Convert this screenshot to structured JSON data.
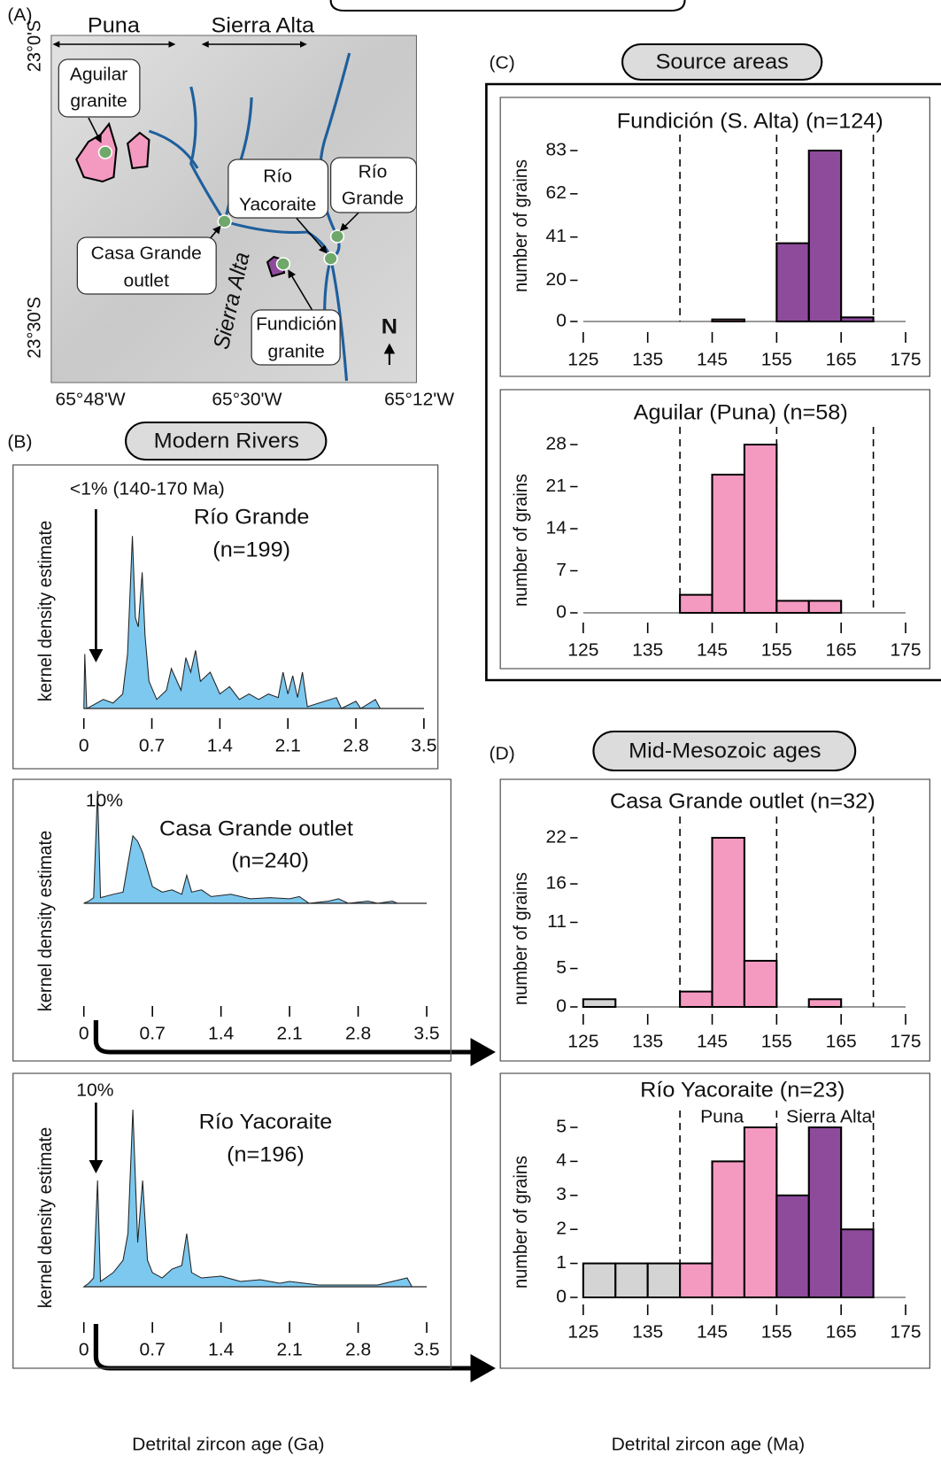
{
  "figure": {
    "panel_labels": [
      "(A)",
      "(B)",
      "(C)",
      "(D)"
    ],
    "section_titles": [
      "Source areas",
      "Modern Rivers",
      "Mid-Mesozoic ages"
    ]
  },
  "map": {
    "region_labels": [
      "Puna",
      "Sierra Alta"
    ],
    "latitudes": [
      "23°0'S",
      "23°30'S"
    ],
    "longitudes": [
      "65°48'W",
      "65°30'W",
      "65°12'W"
    ],
    "callouts": [
      {
        "lines": [
          "Aguilar",
          "granite"
        ]
      },
      {
        "lines": [
          "Río",
          "Yacoraite"
        ]
      },
      {
        "lines": [
          "Río",
          "Grande"
        ]
      },
      {
        "lines": [
          "Casa Grande",
          "outlet"
        ]
      },
      {
        "lines": [
          "Fundición",
          "granite"
        ]
      }
    ],
    "range_label": "Sierra Alta",
    "north": "N"
  },
  "chart_data": [
    {
      "type": "area",
      "title": "Río Grande",
      "subtitle": "(n=199)",
      "ylabel": "kernel density estimate",
      "annotation": "<1% (140-170 Ma)",
      "color": "#7cc8ef",
      "x": [
        0,
        0.01,
        0.03,
        0.1,
        0.2,
        0.3,
        0.4,
        0.45,
        0.5,
        0.53,
        0.56,
        0.6,
        0.63,
        0.67,
        0.75,
        0.85,
        0.9,
        1.0,
        1.05,
        1.1,
        1.15,
        1.2,
        1.3,
        1.4,
        1.5,
        1.6,
        1.7,
        1.8,
        1.9,
        2.0,
        2.05,
        2.1,
        2.15,
        2.2,
        2.25,
        2.3,
        2.6,
        2.65,
        2.8,
        2.85,
        3.0,
        3.05,
        3.5
      ],
      "values": [
        0,
        0.3,
        0,
        0.02,
        0.05,
        0.03,
        0.08,
        0.3,
        0.95,
        0.5,
        0.45,
        0.75,
        0.4,
        0.15,
        0.05,
        0.1,
        0.22,
        0.1,
        0.28,
        0.2,
        0.32,
        0.15,
        0.2,
        0.08,
        0.12,
        0.05,
        0.08,
        0.05,
        0.08,
        0.06,
        0.2,
        0.08,
        0.18,
        0.06,
        0.2,
        0.01,
        0.06,
        0,
        0.04,
        0,
        0.05,
        0,
        0
      ],
      "xlim": [
        0,
        3.5
      ],
      "ylim": [
        0,
        1
      ],
      "xticks": [
        0,
        0.7,
        1.4,
        2.1,
        2.8,
        3.5
      ]
    },
    {
      "type": "area",
      "title": "Casa Grande outlet",
      "subtitle": "(n=240)",
      "ylabel": "kernel density estimate",
      "annotation": "10%",
      "color": "#7cc8ef",
      "x": [
        0,
        0.05,
        0.1,
        0.14,
        0.17,
        0.3,
        0.4,
        0.45,
        0.5,
        0.55,
        0.6,
        0.65,
        0.7,
        0.8,
        0.9,
        1.0,
        1.05,
        1.1,
        1.2,
        1.3,
        1.5,
        1.7,
        1.9,
        2.1,
        2.2,
        2.3,
        2.5,
        2.6,
        2.7,
        2.9,
        3.0,
        3.15,
        3.2,
        3.5
      ],
      "values": [
        0,
        0.02,
        0.05,
        1.0,
        0.05,
        0.08,
        0.1,
        0.35,
        0.6,
        0.55,
        0.45,
        0.3,
        0.15,
        0.1,
        0.12,
        0.08,
        0.25,
        0.1,
        0.12,
        0.06,
        0.08,
        0.04,
        0.05,
        0.04,
        0.06,
        0,
        0.02,
        0.04,
        0,
        0.02,
        0,
        0.02,
        0,
        0
      ],
      "xlim": [
        0,
        3.5
      ],
      "ylim": [
        0,
        1
      ],
      "xticks": [
        0,
        0.7,
        1.4,
        2.1,
        2.8,
        3.5
      ]
    },
    {
      "type": "area",
      "title": "Río Yacoraite",
      "subtitle": "(n=196)",
      "ylabel": "kernel density estimate",
      "annotation": "10%",
      "color": "#7cc8ef",
      "xlabel": "Detrital zircon age (Ga)",
      "x": [
        0,
        0.05,
        0.1,
        0.14,
        0.17,
        0.3,
        0.4,
        0.45,
        0.5,
        0.55,
        0.6,
        0.65,
        0.7,
        0.8,
        0.9,
        1.0,
        1.05,
        1.1,
        1.2,
        1.4,
        1.6,
        1.8,
        2.0,
        2.1,
        2.4,
        2.7,
        3.0,
        3.3,
        3.35,
        3.5
      ],
      "values": [
        0,
        0.02,
        0.05,
        0.6,
        0.03,
        0.08,
        0.15,
        0.3,
        1.0,
        0.25,
        0.6,
        0.15,
        0.08,
        0.05,
        0.1,
        0.12,
        0.3,
        0.08,
        0.05,
        0.06,
        0.03,
        0.04,
        0.02,
        0.03,
        0.01,
        0.01,
        0.01,
        0.05,
        0,
        0
      ],
      "xlim": [
        0,
        3.5
      ],
      "ylim": [
        0,
        1
      ],
      "xticks": [
        0,
        0.7,
        1.4,
        2.1,
        2.8,
        3.5
      ]
    },
    {
      "type": "histogram",
      "title": "Fundición (S. Alta) (n=124)",
      "ylabel": "number of grains",
      "bins": [
        125,
        130,
        135,
        140,
        145,
        150,
        155,
        160,
        165,
        170,
        175
      ],
      "values": [
        0,
        0,
        0,
        0,
        1,
        0,
        38,
        83,
        2,
        0
      ],
      "colors": [
        "#d4d4d4",
        "#d4d4d4",
        "#d4d4d4",
        "#f49ac1",
        "#f49ac1",
        "#f49ac1",
        "#8e4b9c",
        "#8e4b9c",
        "#8e4b9c",
        "#d4d4d4"
      ],
      "xlim": [
        125,
        175
      ],
      "ylim": [
        0,
        83
      ],
      "xticks": [
        125,
        135,
        145,
        155,
        165,
        175
      ],
      "yticks": [
        0,
        20,
        41,
        62,
        83
      ],
      "reference_lines": [
        140,
        155,
        170
      ]
    },
    {
      "type": "histogram",
      "title": "Aguilar (Puna) (n=58)",
      "ylabel": "number of grains",
      "bins": [
        125,
        130,
        135,
        140,
        145,
        150,
        155,
        160,
        165,
        170,
        175
      ],
      "values": [
        0,
        0,
        0,
        3,
        23,
        28,
        2,
        2,
        0,
        0
      ],
      "colors": [
        "#d4d4d4",
        "#d4d4d4",
        "#d4d4d4",
        "#f49ac1",
        "#f49ac1",
        "#f49ac1",
        "#f49ac1",
        "#f49ac1",
        "#f49ac1",
        "#d4d4d4"
      ],
      "xlim": [
        125,
        175
      ],
      "ylim": [
        0,
        28
      ],
      "xticks": [
        125,
        135,
        145,
        155,
        165,
        175
      ],
      "yticks": [
        0,
        7,
        14,
        21,
        28
      ],
      "reference_lines": [
        140,
        155,
        170
      ]
    },
    {
      "type": "histogram",
      "title": "Casa Grande outlet (n=32)",
      "ylabel": "number of grains",
      "bins": [
        125,
        130,
        135,
        140,
        145,
        150,
        155,
        160,
        165,
        170,
        175
      ],
      "values": [
        1,
        0,
        0,
        2,
        22,
        6,
        0,
        1,
        0,
        0
      ],
      "colors": [
        "#d4d4d4",
        "#d4d4d4",
        "#d4d4d4",
        "#f49ac1",
        "#f49ac1",
        "#f49ac1",
        "#f49ac1",
        "#f49ac1",
        "#f49ac1",
        "#d4d4d4"
      ],
      "xlim": [
        125,
        175
      ],
      "ylim": [
        0,
        22
      ],
      "xticks": [
        125,
        135,
        145,
        155,
        165,
        175
      ],
      "yticks": [
        0,
        5,
        11,
        16,
        22
      ],
      "reference_lines": [
        140,
        155,
        170
      ]
    },
    {
      "type": "histogram",
      "title": "Río Yacoraite (n=23)",
      "ylabel": "number of grains",
      "xlabel": "Detrital zircon age (Ma)",
      "annotations": [
        "Puna",
        "Sierra Alta"
      ],
      "bins": [
        125,
        130,
        135,
        140,
        145,
        150,
        155,
        160,
        165,
        170,
        175
      ],
      "values": [
        1,
        1,
        1,
        1,
        4,
        5,
        3,
        5,
        2,
        0
      ],
      "colors": [
        "#d4d4d4",
        "#d4d4d4",
        "#d4d4d4",
        "#f49ac1",
        "#f49ac1",
        "#f49ac1",
        "#8e4b9c",
        "#8e4b9c",
        "#8e4b9c",
        "#d4d4d4"
      ],
      "xlim": [
        125,
        175
      ],
      "ylim": [
        0,
        5
      ],
      "xticks": [
        125,
        135,
        145,
        155,
        165,
        175
      ],
      "yticks": [
        0,
        1,
        2,
        3,
        4,
        5
      ],
      "reference_lines": [
        140,
        155,
        170
      ]
    }
  ]
}
